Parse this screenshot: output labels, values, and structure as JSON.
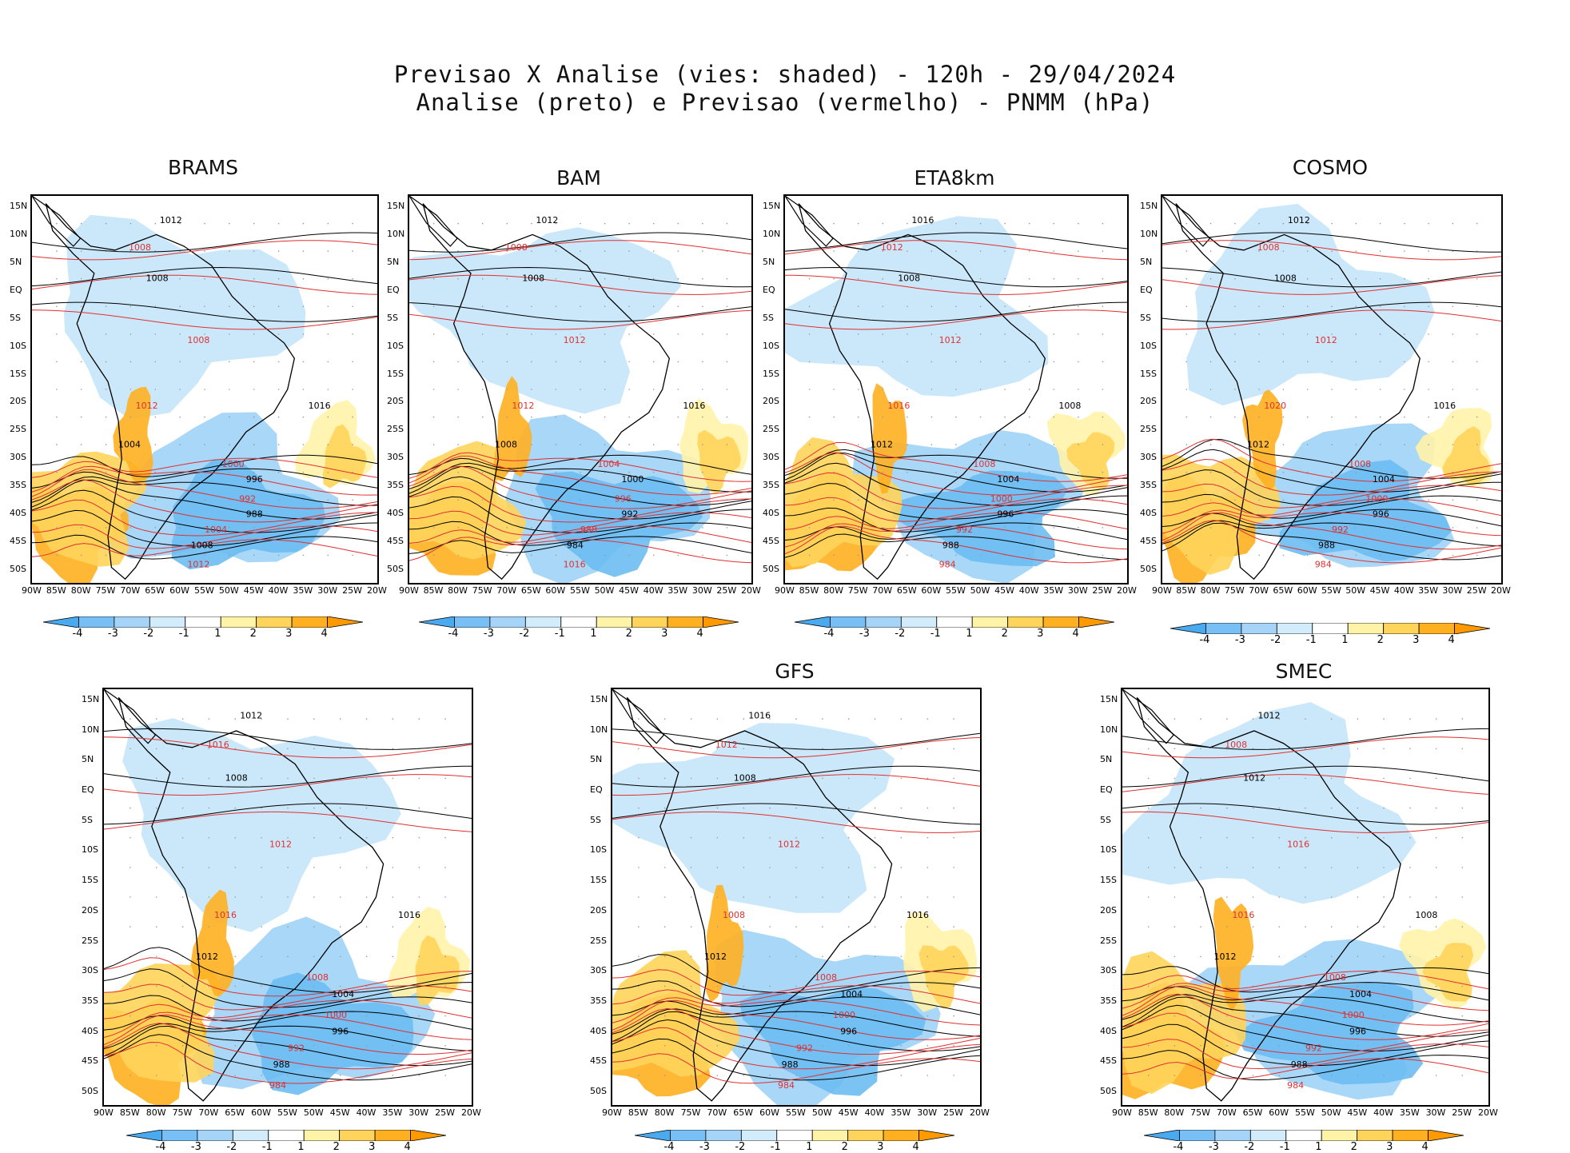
{
  "title": {
    "line1": "Previsao X Analise (vies: shaded) - 120h - 29/04/2024",
    "line2": "Analise (preto) e Previsao (vermelho) - PNMM (hPa)"
  },
  "axes": {
    "lat_labels": [
      "15N",
      "10N",
      "5N",
      "EQ",
      "5S",
      "10S",
      "15S",
      "20S",
      "25S",
      "30S",
      "35S",
      "40S",
      "45S",
      "50S"
    ],
    "lon_labels": [
      "90W",
      "85W",
      "80W",
      "75W",
      "70W",
      "65W",
      "60W",
      "55W",
      "50W",
      "45W",
      "40W",
      "35W",
      "30W",
      "25W",
      "20W"
    ]
  },
  "colorbar": {
    "ticks": [
      "-4",
      "-3",
      "-2",
      "-1",
      "1",
      "2",
      "3",
      "4"
    ],
    "colors": [
      "#4aaaf0",
      "#78bff5",
      "#a5d4f8",
      "#d2ecfb",
      "#ffffff",
      "#fff3a8",
      "#ffd45a",
      "#ffb020",
      "#ff9900"
    ]
  },
  "colors": {
    "analysis_contour": "#000000",
    "forecast_contour": "#e03030",
    "negative_bias": "#6cbcf2",
    "positive_bias": "#ffb020"
  },
  "panels": [
    {
      "label": "BRAMS",
      "isobars": [
        "1012",
        "1008",
        "1008",
        "1008",
        "1016",
        "1012",
        "1004",
        "1000",
        "996",
        "992",
        "988",
        "1004",
        "1008",
        "1012"
      ]
    },
    {
      "label": "BAM",
      "isobars": [
        "1012",
        "1008",
        "1008",
        "1012",
        "1016",
        "1012",
        "1008",
        "1004",
        "1000",
        "996",
        "992",
        "988",
        "984",
        "1016"
      ]
    },
    {
      "label": "ETA8km",
      "isobars": [
        "1016",
        "1012",
        "1008",
        "1012",
        "1008",
        "1016",
        "1012",
        "1008",
        "1004",
        "1000",
        "996",
        "992",
        "988",
        "984"
      ]
    },
    {
      "label": "COSMO",
      "isobars": [
        "1012",
        "1008",
        "1008",
        "1012",
        "1016",
        "1020",
        "1012",
        "1008",
        "1004",
        "1000",
        "996",
        "992",
        "988",
        "984"
      ]
    },
    {
      "label": "",
      "isobars": [
        "1012",
        "1016",
        "1008",
        "1012",
        "1016",
        "1016",
        "1012",
        "1008",
        "1004",
        "1000",
        "996",
        "992",
        "988",
        "984"
      ]
    },
    {
      "label": "GFS",
      "isobars": [
        "1016",
        "1012",
        "1008",
        "1012",
        "1016",
        "1008",
        "1012",
        "1008",
        "1004",
        "1000",
        "996",
        "992",
        "988",
        "984"
      ]
    },
    {
      "label": "SMEC",
      "isobars": [
        "1012",
        "1008",
        "1012",
        "1016",
        "1008",
        "1016",
        "1012",
        "1008",
        "1004",
        "1000",
        "996",
        "992",
        "988",
        "984"
      ]
    }
  ]
}
